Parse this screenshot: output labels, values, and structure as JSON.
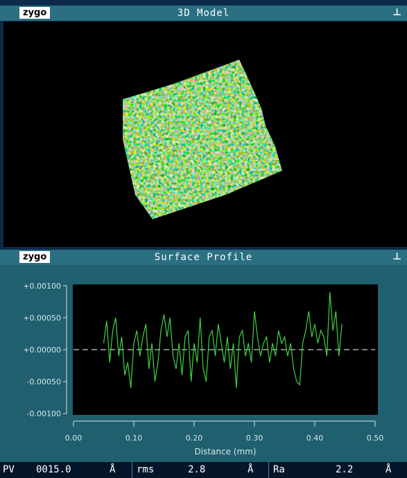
{
  "windows": [
    {
      "logo": "zygo",
      "title": "3D Model"
    },
    {
      "logo": "zygo",
      "title": "Surface Profile"
    }
  ],
  "chart_data": {
    "type": "line",
    "xlabel": "Distance (mm)",
    "x": [
      0.05,
      0.055,
      0.06,
      0.065,
      0.07,
      0.075,
      0.08,
      0.085,
      0.09,
      0.095,
      0.1,
      0.105,
      0.11,
      0.115,
      0.12,
      0.125,
      0.13,
      0.135,
      0.14,
      0.145,
      0.15,
      0.155,
      0.16,
      0.165,
      0.17,
      0.175,
      0.18,
      0.185,
      0.19,
      0.195,
      0.2,
      0.205,
      0.21,
      0.215,
      0.22,
      0.225,
      0.23,
      0.235,
      0.24,
      0.245,
      0.25,
      0.255,
      0.26,
      0.265,
      0.27,
      0.275,
      0.28,
      0.285,
      0.29,
      0.295,
      0.3,
      0.305,
      0.31,
      0.315,
      0.32,
      0.325,
      0.33,
      0.335,
      0.34,
      0.345,
      0.35,
      0.355,
      0.36,
      0.365,
      0.37,
      0.375,
      0.38,
      0.385,
      0.39,
      0.395,
      0.4,
      0.405,
      0.41,
      0.415,
      0.42,
      0.425,
      0.43,
      0.435,
      0.44,
      0.445
    ],
    "series": [
      {
        "color": "#3fd43f",
        "values": [
          0.0001,
          0.00045,
          -0.0002,
          0.0003,
          0.0005,
          -0.0001,
          0.0002,
          -0.0004,
          -0.0002,
          -0.0006,
          0.0001,
          0.0003,
          -0.0001,
          0.0002,
          0.0004,
          -0.0003,
          0.0001,
          -0.0005,
          -0.0002,
          0.0003,
          0.00055,
          0.0002,
          0.0005,
          -0.0001,
          -0.0003,
          0.0001,
          -0.0004,
          0.0002,
          0.0003,
          -0.0005,
          0.0001,
          -0.0002,
          0.0005,
          -0.0003,
          -0.0005,
          0.0002,
          0.0003,
          -0.0001,
          0.0004,
          0.0001,
          -0.0002,
          0.0002,
          -0.0003,
          0.0001,
          -0.0006,
          0.0002,
          0.0003,
          -0.0001,
          0.0001,
          -0.0002,
          0.0006,
          0.0002,
          -0.0001,
          0.0001,
          0.0002,
          -0.0002,
          0.0001,
          -0.0001,
          0.0003,
          0.0001,
          0.0002,
          -0.0001,
          0.0001,
          -0.0003,
          -0.0005,
          -0.00055,
          0.0001,
          0.0003,
          0.0006,
          0.0002,
          0.0004,
          0.0001,
          0.0003,
          0.0002,
          -0.0001,
          0.0009,
          0.0003,
          0.0006,
          -0.0001,
          0.0004
        ]
      }
    ],
    "xlim": [
      0,
      0.5
    ],
    "xticks": [
      {
        "value": 0,
        "label": "0.00"
      },
      {
        "value": 0.1,
        "label": "0.10"
      },
      {
        "value": 0.2,
        "label": "0.20"
      },
      {
        "value": 0.3,
        "label": "0.30"
      },
      {
        "value": 0.4,
        "label": "0.40"
      },
      {
        "value": 0.5,
        "label": "0.50"
      }
    ],
    "ylim": [
      -0.00102,
      0.00102
    ],
    "yticks": [
      {
        "value": 0.001,
        "label": "+0.00100"
      },
      {
        "value": 0.0005,
        "label": "+0.00050"
      },
      {
        "value": 0,
        "label": "+0.00000"
      },
      {
        "value": -0.0005,
        "label": "-0.00050"
      },
      {
        "value": -0.001,
        "label": "-0.00100"
      }
    ]
  },
  "stats": [
    {
      "label": "PV",
      "value": "0015.0",
      "unit": "Å"
    },
    {
      "label": "rms",
      "value": "2.8",
      "unit": "Å"
    },
    {
      "label": "Ra",
      "value": "2.2",
      "unit": "Å"
    }
  ]
}
